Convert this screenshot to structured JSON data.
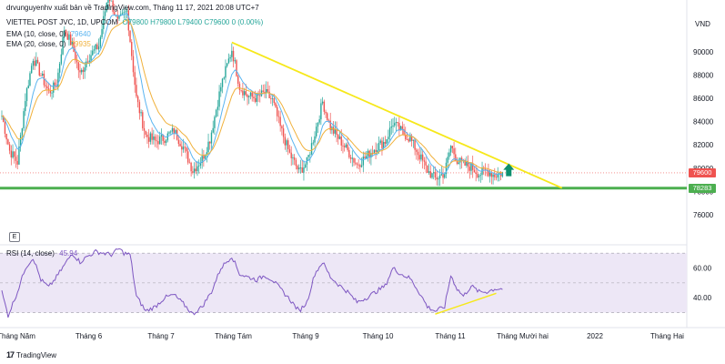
{
  "header": {
    "watermark": "drvunguyenhv xuất bản về TradingView.com, Tháng 11 17, 2021 20:08 UTC+7",
    "symbol": "VIETTEL POST JVC, 1D, UPCOM",
    "ohlc": "O79800 H79800 L79400 C79600 0 (0.00%)",
    "currency": "VND",
    "ema10_label": "EMA (10, close, 0)",
    "ema10_value": "79640",
    "ema20_label": "EMA (20, close, 0)",
    "ema20_value": "79935",
    "rsi_label": "RSI (14, close)",
    "rsi_value": "45.94",
    "logo_text": "TradingView",
    "e_button": "E"
  },
  "colors": {
    "up": "#26a69a",
    "down": "#ef5350",
    "ema10": "#5ab4f0",
    "ema20": "#f0b13c",
    "trendline": "#f6e81a",
    "support": "#4caf50",
    "rsi": "#7e57c2",
    "rsi_band": "#ede7f6"
  },
  "chart_data": [
    {
      "type": "candlestick",
      "ylim": [
        73500,
        93500
      ],
      "y_ticks": [
        "76000",
        "78000",
        "80000",
        "82000",
        "84000",
        "86000",
        "88000",
        "90000"
      ],
      "x_ticks": [
        "Tháng Năm",
        "Tháng 6",
        "Tháng 7",
        "Tháng Tám",
        "Tháng 9",
        "Tháng 10",
        "Tháng 11",
        "Tháng Mười hai",
        "2022",
        "Tháng Hai"
      ],
      "price_labels": [
        {
          "value": "79600",
          "price": 79600,
          "color": "#ef5350"
        },
        {
          "value": "78283",
          "price": 78283,
          "color": "#4caf50"
        }
      ],
      "support_level": 78283,
      "trendline": {
        "from_day": 147,
        "from_price": 90800,
        "to_day": 358,
        "to_price": 78300
      },
      "last_close_line": 79600,
      "arrow": {
        "day": 324,
        "price": 79700
      },
      "waypoints": [
        [
          0,
          84500
        ],
        [
          5,
          81500
        ],
        [
          10,
          80500
        ],
        [
          15,
          86000
        ],
        [
          20,
          89500
        ],
        [
          25,
          88000
        ],
        [
          30,
          86500
        ],
        [
          35,
          87200
        ],
        [
          40,
          92000
        ],
        [
          45,
          90500
        ],
        [
          50,
          88000
        ],
        [
          55,
          89500
        ],
        [
          62,
          90500
        ],
        [
          68,
          95000
        ],
        [
          74,
          92500
        ],
        [
          80,
          93500
        ],
        [
          86,
          86000
        ],
        [
          92,
          82800
        ],
        [
          98,
          82300
        ],
        [
          104,
          82600
        ],
        [
          110,
          83200
        ],
        [
          116,
          81800
        ],
        [
          122,
          79800
        ],
        [
          128,
          80800
        ],
        [
          133,
          82500
        ],
        [
          140,
          87000
        ],
        [
          147,
          90200
        ],
        [
          152,
          87000
        ],
        [
          157,
          86200
        ],
        [
          163,
          86000
        ],
        [
          168,
          86500
        ],
        [
          173,
          85800
        ],
        [
          178,
          83500
        ],
        [
          184,
          81200
        ],
        [
          190,
          79700
        ],
        [
          195,
          80500
        ],
        [
          200,
          83000
        ],
        [
          205,
          85700
        ],
        [
          210,
          83500
        ],
        [
          215,
          82600
        ],
        [
          221,
          81500
        ],
        [
          227,
          80300
        ],
        [
          233,
          81000
        ],
        [
          239,
          81800
        ],
        [
          245,
          82300
        ],
        [
          250,
          83900
        ],
        [
          255,
          83200
        ],
        [
          261,
          82500
        ],
        [
          266,
          81300
        ],
        [
          272,
          79800
        ],
        [
          277,
          79100
        ],
        [
          283,
          79600
        ],
        [
          287,
          81900
        ],
        [
          291,
          80700
        ],
        [
          295,
          80300
        ],
        [
          300,
          80100
        ],
        [
          305,
          79500
        ],
        [
          310,
          79800
        ],
        [
          315,
          79400
        ],
        [
          320,
          79600
        ]
      ],
      "moving_averages": [
        {
          "name": "EMA (10, close, 0)",
          "period": 10
        },
        {
          "name": "EMA (20, close, 0)",
          "period": 20
        }
      ]
    },
    {
      "type": "line",
      "ylim": [
        23,
        75
      ],
      "y_ticks": [
        "40.00",
        "60.00"
      ],
      "bands": [
        30,
        50,
        70
      ],
      "trendline": {
        "from_day": 277,
        "from_value": 29,
        "to_day": 316,
        "to_value": 43
      },
      "waypoints": [
        [
          0,
          44
        ],
        [
          4,
          28
        ],
        [
          10,
          44
        ],
        [
          15,
          60
        ],
        [
          20,
          67
        ],
        [
          25,
          52
        ],
        [
          30,
          47
        ],
        [
          35,
          54
        ],
        [
          40,
          62
        ],
        [
          45,
          70
        ],
        [
          50,
          64
        ],
        [
          55,
          68
        ],
        [
          60,
          71
        ],
        [
          65,
          70
        ],
        [
          70,
          69
        ],
        [
          75,
          73
        ],
        [
          78,
          70
        ],
        [
          82,
          69
        ],
        [
          86,
          41
        ],
        [
          92,
          31
        ],
        [
          98,
          34
        ],
        [
          104,
          40
        ],
        [
          110,
          42
        ],
        [
          116,
          36
        ],
        [
          122,
          29
        ],
        [
          128,
          34
        ],
        [
          134,
          44
        ],
        [
          140,
          60
        ],
        [
          147,
          68
        ],
        [
          152,
          56
        ],
        [
          157,
          54
        ],
        [
          163,
          52
        ],
        [
          168,
          55
        ],
        [
          173,
          52
        ],
        [
          178,
          46
        ],
        [
          184,
          39
        ],
        [
          190,
          31
        ],
        [
          195,
          37
        ],
        [
          200,
          56
        ],
        [
          205,
          64
        ],
        [
          210,
          54
        ],
        [
          215,
          49
        ],
        [
          221,
          44
        ],
        [
          227,
          37
        ],
        [
          233,
          40
        ],
        [
          239,
          44
        ],
        [
          245,
          48
        ],
        [
          250,
          60
        ],
        [
          255,
          56
        ],
        [
          261,
          53
        ],
        [
          266,
          45
        ],
        [
          272,
          34
        ],
        [
          277,
          31
        ],
        [
          283,
          34
        ],
        [
          287,
          55
        ],
        [
          291,
          46
        ],
        [
          295,
          41
        ],
        [
          300,
          48
        ],
        [
          305,
          44
        ],
        [
          310,
          44
        ],
        [
          315,
          46
        ],
        [
          320,
          46
        ]
      ]
    }
  ]
}
